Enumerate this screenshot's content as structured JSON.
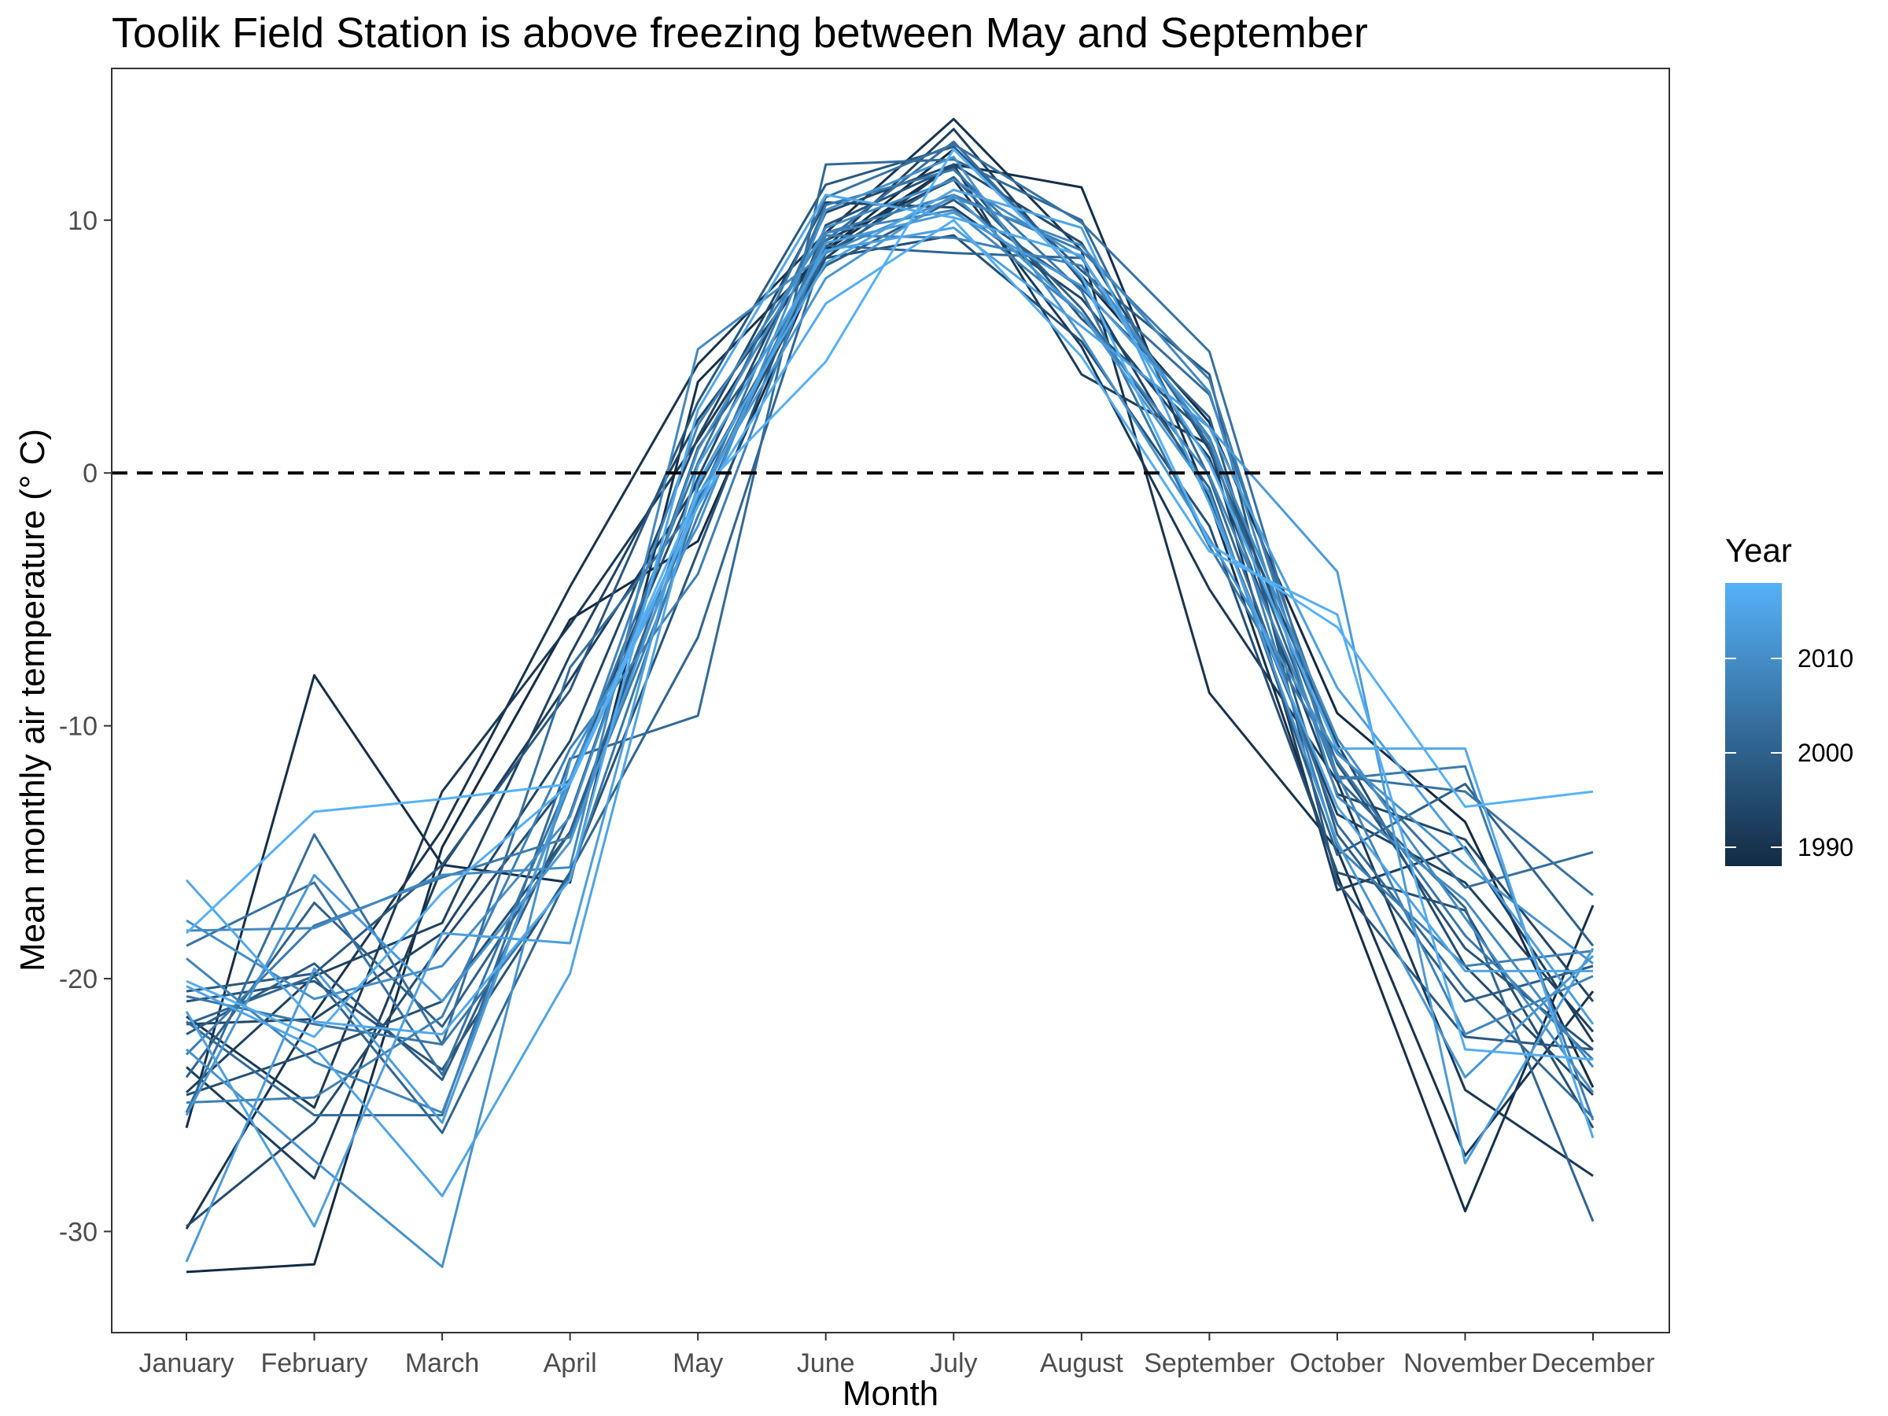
{
  "chart_data": {
    "type": "line",
    "title": "Toolik Field Station is above freezing between May and September",
    "xlabel": "Month",
    "ylabel": "Mean monthly air temperature (° C)",
    "categories": [
      "January",
      "February",
      "March",
      "April",
      "May",
      "June",
      "July",
      "August",
      "September",
      "October",
      "November",
      "December"
    ],
    "ylim": [
      -34,
      16
    ],
    "yticks": [
      10,
      0,
      -10,
      -20,
      -30
    ],
    "ytick_labels": [
      "10",
      "0",
      "-10",
      "-20",
      "-30"
    ],
    "reference_line": {
      "y": 0,
      "style": "dashed",
      "color": "#000000"
    },
    "grid": false,
    "legend": {
      "title": "Year",
      "type": "colorbar",
      "position": "right",
      "range": [
        1988,
        2018
      ],
      "ticks": [
        2010,
        2000,
        1990
      ],
      "tick_labels": [
        "2010",
        "2000",
        "1990"
      ],
      "color_low": "#132B43",
      "color_high": "#56B1F7"
    },
    "series": [
      {
        "year": 1988,
        "values": [
          -31.6,
          -31.3,
          -14.8,
          -5.8,
          -2.7,
          8.8,
          12.8,
          7.8,
          2.0,
          -9.5,
          -13.8,
          -24.3
        ]
      },
      {
        "year": 1989,
        "values": [
          -25.9,
          -8.0,
          -15.5,
          -16.2,
          3.6,
          8.8,
          12.2,
          11.3,
          -1.1,
          -15.9,
          -29.2,
          -17.1
        ]
      },
      {
        "year": 1990,
        "values": [
          -29.9,
          -21.4,
          -14.1,
          -4.5,
          4.3,
          9.5,
          14.0,
          8.8,
          -8.7,
          -14.9,
          -27.0,
          -20.5
        ]
      },
      {
        "year": 1991,
        "values": [
          -21.5,
          -25.1,
          -12.6,
          -6.0,
          1.3,
          9.2,
          11.6,
          5.0,
          -4.6,
          -12.2,
          -24.4,
          -27.8
        ]
      },
      {
        "year": 1992,
        "values": [
          -23.5,
          -27.9,
          -15.6,
          -8.2,
          -0.4,
          8.5,
          12.2,
          3.9,
          1.1,
          -16.5,
          -14.8,
          -22.5
        ]
      },
      {
        "year": 1993,
        "values": [
          -24.5,
          -19.9,
          -17.8,
          -7.2,
          2.1,
          8.9,
          13.6,
          7.6,
          -1.0,
          -13.5,
          -16.2,
          -22.1
        ]
      },
      {
        "year": 1994,
        "values": [
          -21.8,
          -21.6,
          -18.2,
          -10.6,
          1.4,
          10.7,
          10.5,
          6.9,
          0.6,
          -12.7,
          -14.5,
          -20.9
        ]
      },
      {
        "year": 1995,
        "values": [
          -29.8,
          -25.7,
          -18.6,
          -12.1,
          -0.2,
          10.3,
          12.2,
          9.1,
          0.9,
          -10.7,
          -19.5,
          -24.6
        ]
      },
      {
        "year": 1996,
        "values": [
          -24.6,
          -22.9,
          -20.9,
          -14.2,
          -1.1,
          8.5,
          9.4,
          5.2,
          -2.1,
          -15.8,
          -17.3,
          -25.9
        ]
      },
      {
        "year": 1997,
        "values": [
          -20.9,
          -20.1,
          -23.6,
          -15.8,
          -3.1,
          9.8,
          12.1,
          6.1,
          1.4,
          -11.5,
          -18.8,
          -22.8
        ]
      },
      {
        "year": 1998,
        "values": [
          -20.5,
          -19.8,
          -15.5,
          -8.6,
          2.8,
          11.4,
          12.9,
          8.0,
          3.9,
          -16.2,
          -22.3,
          -22.8
        ]
      },
      {
        "year": 1999,
        "values": [
          -22.2,
          -19.4,
          -24.0,
          -13.5,
          1.0,
          8.2,
          10.8,
          7.3,
          2.2,
          -14.3,
          -20.9,
          -19.5
        ]
      },
      {
        "year": 2000,
        "values": [
          -23.9,
          -17.0,
          -21.9,
          -14.2,
          -0.6,
          8.7,
          11.7,
          6.5,
          -0.6,
          -15.1,
          -12.3,
          -18.7
        ]
      },
      {
        "year": 2001,
        "values": [
          -21.8,
          -19.9,
          -26.1,
          -15.8,
          -6.5,
          9.0,
          8.7,
          8.5,
          1.1,
          -12.1,
          -17.2,
          -29.6
        ]
      },
      {
        "year": 2002,
        "values": [
          -21.7,
          -25.4,
          -25.4,
          -11.3,
          -9.6,
          12.2,
          12.4,
          10.0,
          -0.2,
          -13.9,
          -20.4,
          -25.5
        ]
      },
      {
        "year": 2003,
        "values": [
          -25.3,
          -14.3,
          -22.6,
          -7.7,
          -1.2,
          9.2,
          13.1,
          7.7,
          3.1,
          -11.0,
          -16.4,
          -15.0
        ]
      },
      {
        "year": 2004,
        "values": [
          -18.7,
          -16.2,
          -23.8,
          -12.1,
          0.4,
          10.9,
          13.0,
          9.9,
          4.8,
          -12.0,
          -12.6,
          -16.7
        ]
      },
      {
        "year": 2005,
        "values": [
          -20.7,
          -21.8,
          -22.6,
          -16.0,
          -1.2,
          10.6,
          12.0,
          7.2,
          -2.9,
          -11.4,
          -18.3,
          -23.2
        ]
      },
      {
        "year": 2006,
        "values": [
          -23.0,
          -17.9,
          -16.0,
          -14.4,
          -1.7,
          9.5,
          11.0,
          8.8,
          3.7,
          -12.1,
          -11.6,
          -25.6
        ]
      },
      {
        "year": 2007,
        "values": [
          -24.9,
          -24.7,
          -21.5,
          -10.9,
          -4.0,
          9.4,
          9.3,
          8.2,
          1.4,
          -14.8,
          -19.5,
          -18.9
        ]
      },
      {
        "year": 2008,
        "values": [
          -19.2,
          -23.3,
          -25.3,
          -12.3,
          1.9,
          9.5,
          10.4,
          6.3,
          -0.1,
          -11.9,
          -22.2,
          -19.9
        ]
      },
      {
        "year": 2009,
        "values": [
          -18.1,
          -18.0,
          -15.9,
          -15.6,
          4.9,
          8.7,
          10.9,
          9.0,
          3.2,
          -12.8,
          -16.9,
          -23.5
        ]
      },
      {
        "year": 2010,
        "values": [
          -17.7,
          -20.8,
          -19.5,
          -13.6,
          0.9,
          9.7,
          11.6,
          8.5,
          1.3,
          -10.5,
          -17.6,
          -24.5
        ]
      },
      {
        "year": 2011,
        "values": [
          -22.8,
          -27.2,
          -31.4,
          -11.4,
          -2.1,
          10.4,
          12.5,
          5.4,
          -2.6,
          -11.1,
          -15.5,
          -19.4
        ]
      },
      {
        "year": 2012,
        "values": [
          -25.4,
          -15.9,
          -20.9,
          -14.6,
          -0.9,
          7.7,
          11.0,
          6.3,
          -0.8,
          -14.6,
          -23.9,
          -19.1
        ]
      },
      {
        "year": 2013,
        "values": [
          -31.2,
          -19.6,
          -25.7,
          -12.1,
          -1.3,
          9.1,
          10.3,
          7.4,
          1.8,
          -3.9,
          -27.3,
          -18.8
        ]
      },
      {
        "year": 2014,
        "values": [
          -21.3,
          -29.8,
          -18.2,
          -18.6,
          0.3,
          8.8,
          9.7,
          5.8,
          1.8,
          -8.5,
          -14.9,
          -21.8
        ]
      },
      {
        "year": 2015,
        "values": [
          -20.3,
          -22.7,
          -28.6,
          -19.8,
          -0.4,
          8.3,
          11.2,
          9.7,
          -1.2,
          -13.2,
          -19.7,
          -19.7
        ]
      },
      {
        "year": 2016,
        "values": [
          -16.1,
          -21.7,
          -22.2,
          -16.1,
          2.5,
          11.0,
          10.1,
          8.6,
          0.4,
          -10.9,
          -10.9,
          -26.3
        ]
      },
      {
        "year": 2017,
        "values": [
          -20.1,
          -22.3,
          -16.6,
          -12.3,
          -1.3,
          6.7,
          10.0,
          4.6,
          -3.1,
          -5.6,
          -22.8,
          -23.2
        ]
      },
      {
        "year": 2018,
        "values": [
          -18.2,
          -13.4,
          -12.9,
          -12.3,
          -0.8,
          4.4,
          12.8,
          7.8,
          -2.8,
          -6.1,
          -13.2,
          -12.6
        ]
      }
    ]
  }
}
